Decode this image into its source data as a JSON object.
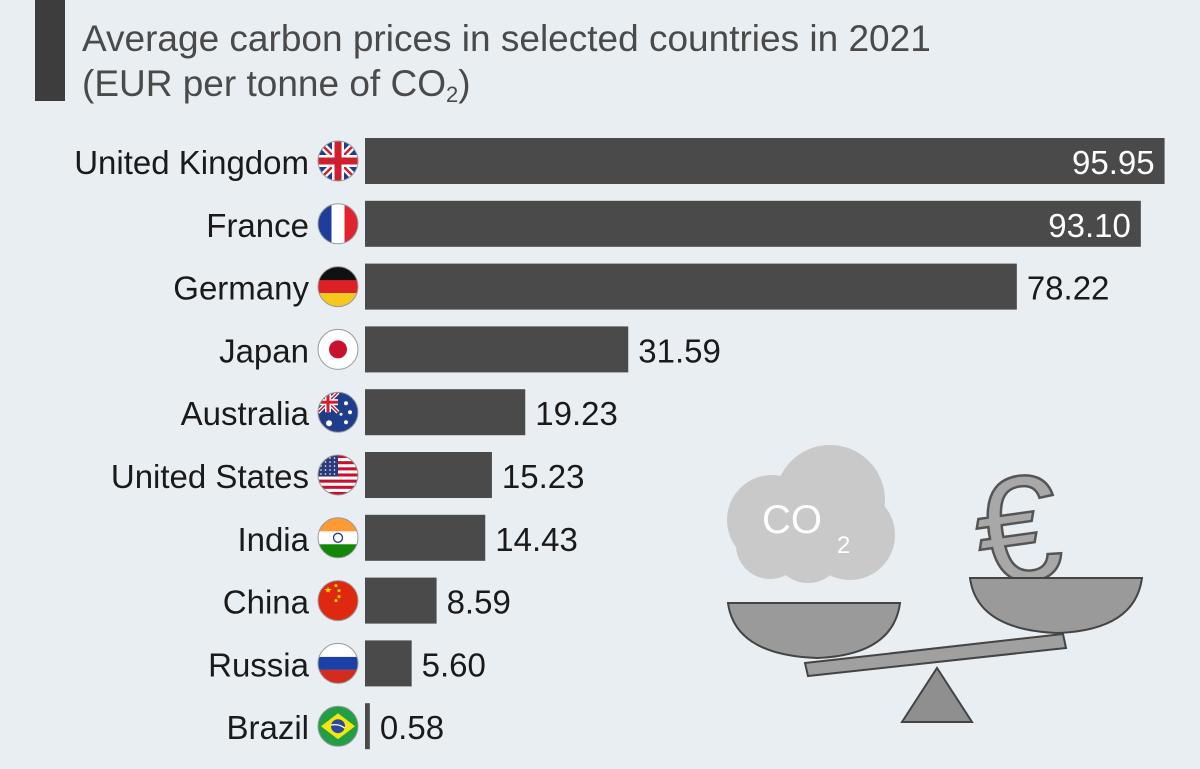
{
  "chart_data": {
    "type": "bar",
    "orientation": "horizontal",
    "title_line1": "Average carbon prices in selected countries in 2021",
    "title_line2_prefix": "(EUR per tonne of CO",
    "title_line2_sub": "2",
    "title_line2_suffix": ")",
    "categories": [
      "United Kingdom",
      "France",
      "Germany",
      "Japan",
      "Australia",
      "United States",
      "India",
      "China",
      "Russia",
      "Brazil"
    ],
    "values": [
      95.95,
      93.1,
      78.22,
      31.59,
      19.23,
      15.23,
      14.43,
      8.59,
      5.6,
      0.58
    ],
    "value_labels": [
      "95.95",
      "93.10",
      "78.22",
      "31.59",
      "19.23",
      "15.23",
      "14.43",
      "8.59",
      "5.60",
      "0.58"
    ],
    "flag_icons": [
      "flag-uk-icon",
      "flag-france-icon",
      "flag-germany-icon",
      "flag-japan-icon",
      "flag-australia-icon",
      "flag-us-icon",
      "flag-india-icon",
      "flag-china-icon",
      "flag-russia-icon",
      "flag-brazil-icon"
    ],
    "xlim": [
      0,
      96
    ],
    "grid": false,
    "legend": "none",
    "colors": {
      "bar": "#4a4a4a",
      "label_inside": "#ffffff",
      "label_outside": "#1a1a1a",
      "background": "#e8eef2"
    }
  },
  "illustration": {
    "name": "co2-euro-balance-illustration",
    "cloud_text": "CO",
    "cloud_sub": "2",
    "currency_symbol": "€"
  }
}
